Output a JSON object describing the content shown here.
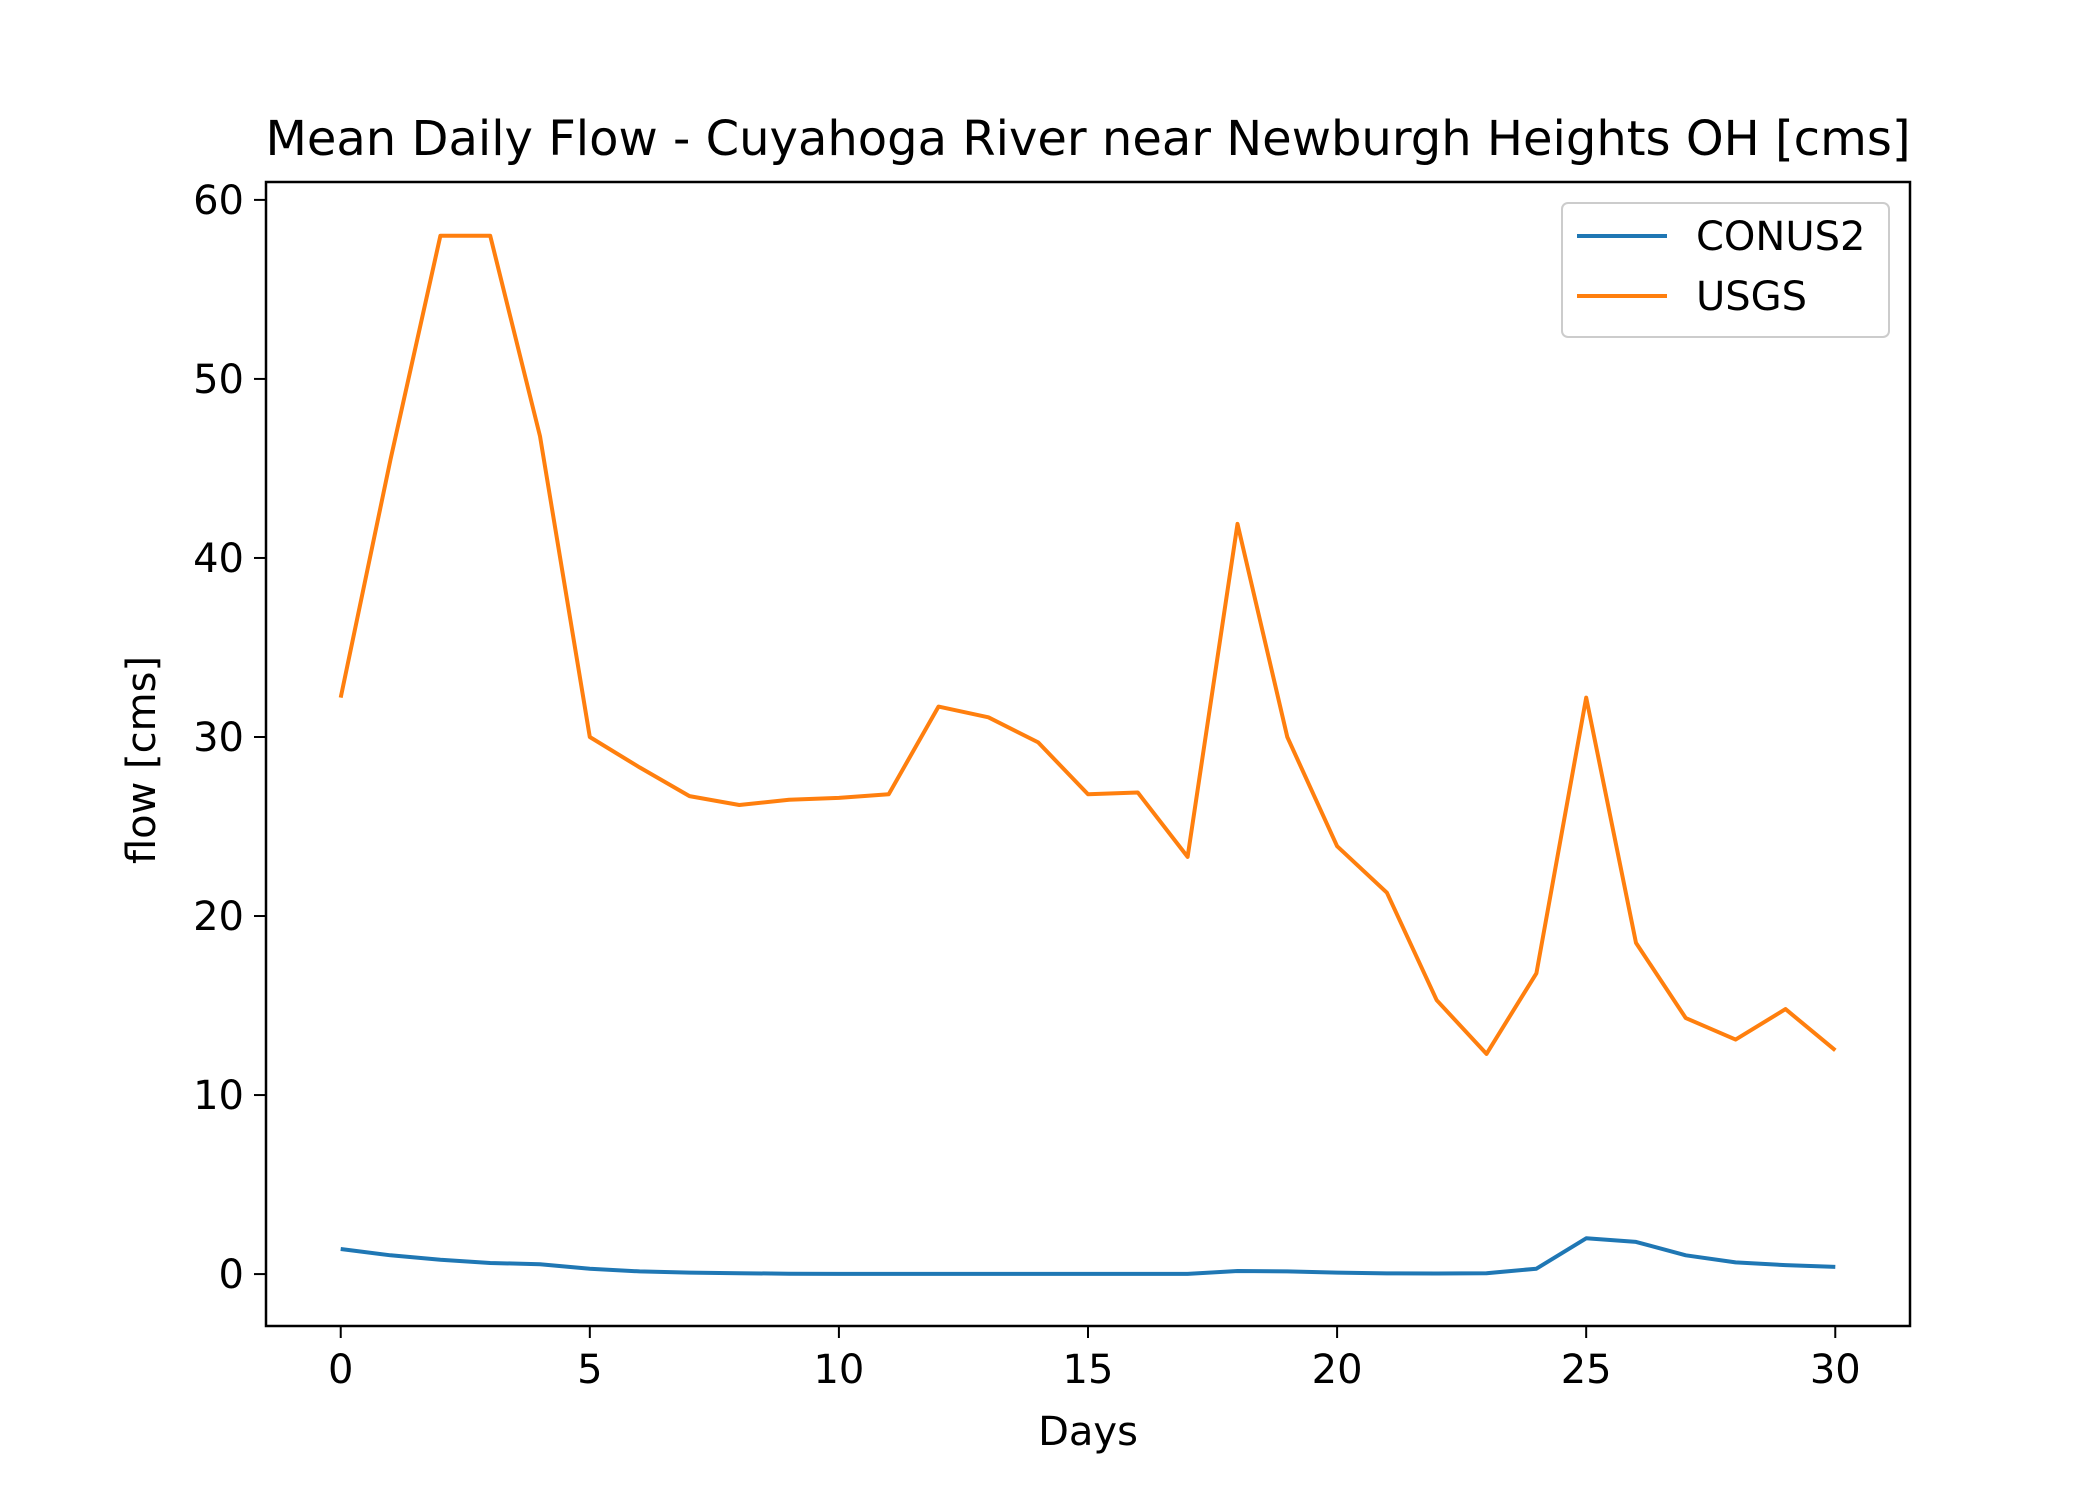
{
  "chart_data": {
    "type": "line",
    "title": "Mean Daily Flow - Cuyahoga River near Newburgh Heights OH [cms]",
    "xlabel": "Days",
    "ylabel": "flow [cms]",
    "xlim": [
      -1.5,
      31.5
    ],
    "ylim": [
      -2.9,
      61
    ],
    "xticks": [
      0,
      5,
      10,
      15,
      20,
      25,
      30
    ],
    "yticks": [
      0,
      10,
      20,
      30,
      40,
      50,
      60
    ],
    "grid": false,
    "legend_position": "top-right",
    "x": [
      0,
      1,
      2,
      3,
      4,
      5,
      6,
      7,
      8,
      9,
      10,
      11,
      12,
      13,
      14,
      15,
      16,
      17,
      18,
      19,
      20,
      21,
      22,
      23,
      24,
      25,
      26,
      27,
      28,
      29,
      30
    ],
    "series": [
      {
        "name": "CONUS2",
        "color": "#1f77b4",
        "values": [
          1.4,
          1.05,
          0.8,
          0.62,
          0.55,
          0.3,
          0.15,
          0.08,
          0.05,
          0.02,
          0.01,
          0.01,
          0.01,
          0.01,
          0.01,
          0.01,
          0.01,
          0.01,
          0.17,
          0.15,
          0.08,
          0.04,
          0.03,
          0.05,
          0.3,
          2.0,
          1.8,
          1.05,
          0.65,
          0.5,
          0.4
        ]
      },
      {
        "name": "USGS",
        "color": "#ff7f0e",
        "values": [
          32.2,
          45.5,
          58.0,
          58.0,
          46.8,
          30.0,
          28.3,
          26.7,
          26.2,
          26.5,
          26.6,
          26.8,
          31.7,
          31.1,
          29.7,
          26.8,
          26.9,
          23.3,
          41.9,
          30.0,
          23.9,
          21.3,
          15.3,
          12.3,
          16.8,
          32.2,
          18.5,
          14.3,
          13.1,
          14.8,
          12.5
        ]
      }
    ]
  }
}
